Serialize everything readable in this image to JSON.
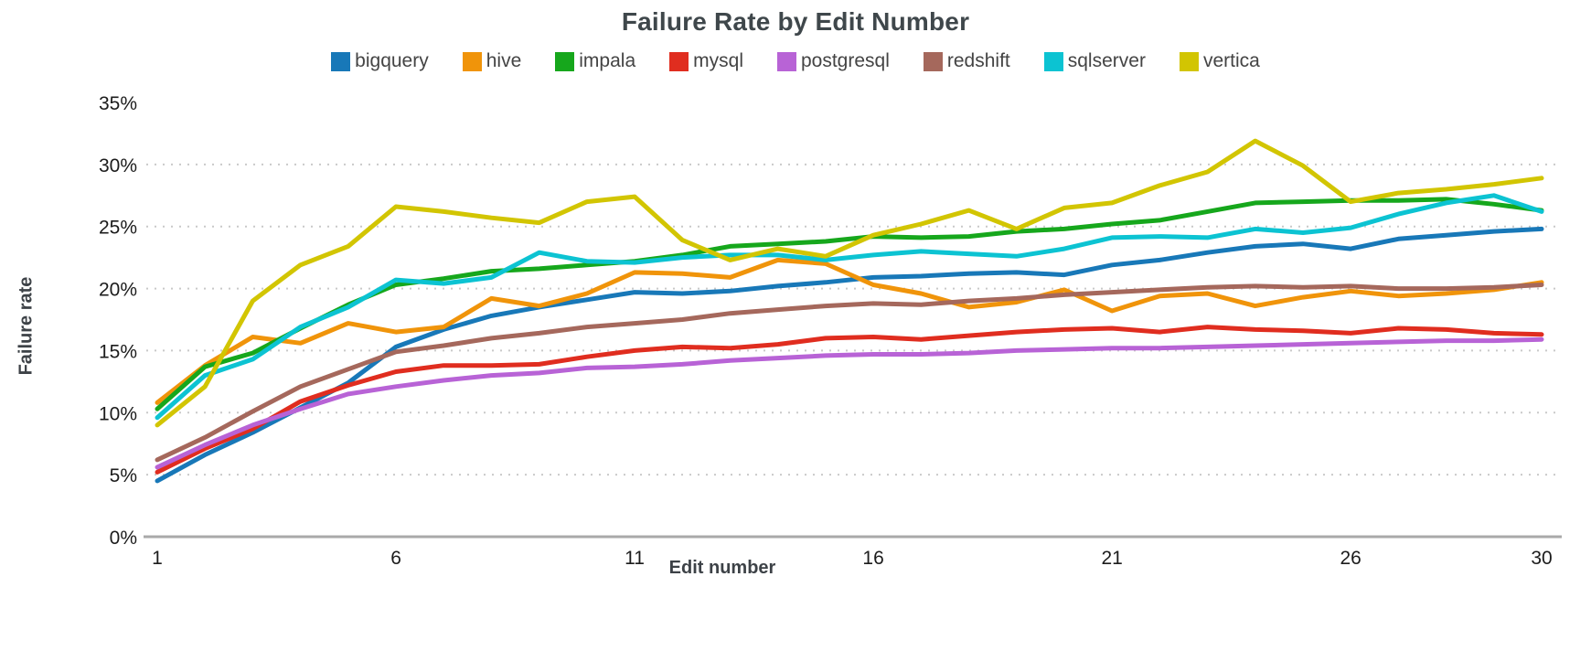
{
  "title": "Failure Rate by Edit Number",
  "axes": {
    "x_title": "Edit number",
    "y_title": "Failure rate"
  },
  "chart_data": {
    "type": "line",
    "title": "Failure Rate by Edit Number",
    "xlabel": "Edit number",
    "ylabel": "Failure rate",
    "xlim": [
      1,
      30
    ],
    "ylim": [
      0,
      35
    ],
    "xticks": [
      1,
      6,
      11,
      16,
      21,
      26,
      30
    ],
    "yticks_percent": [
      0,
      5,
      10,
      15,
      20,
      25,
      30,
      35
    ],
    "grid": "dotted horizontal lines at 5-30%, solid axis at 0%, no gridline at 35%",
    "legend_position": "top center",
    "x": [
      1,
      2,
      3,
      4,
      5,
      6,
      7,
      8,
      9,
      10,
      11,
      12,
      13,
      14,
      15,
      16,
      17,
      18,
      19,
      20,
      21,
      22,
      23,
      24,
      25,
      26,
      27,
      28,
      29,
      30
    ],
    "series": [
      {
        "name": "bigquery",
        "color": "#1878b8",
        "values": [
          4.5,
          6.6,
          8.4,
          10.4,
          12.4,
          15.3,
          16.7,
          17.8,
          18.5,
          19.1,
          19.7,
          19.6,
          19.8,
          20.2,
          20.5,
          20.9,
          21.0,
          21.2,
          21.3,
          21.1,
          21.9,
          22.3,
          22.9,
          23.4,
          23.6,
          23.2,
          24.0,
          24.3,
          24.6,
          24.8
        ]
      },
      {
        "name": "hive",
        "color": "#f0940a",
        "values": [
          10.8,
          13.8,
          16.1,
          15.6,
          17.2,
          16.5,
          16.9,
          19.2,
          18.6,
          19.6,
          21.3,
          21.2,
          20.9,
          22.3,
          22.0,
          20.3,
          19.6,
          18.5,
          18.9,
          19.9,
          18.2,
          19.4,
          19.6,
          18.6,
          19.3,
          19.8,
          19.4,
          19.6,
          19.9,
          20.5
        ]
      },
      {
        "name": "impala",
        "color": "#16a71c",
        "values": [
          10.3,
          13.7,
          14.8,
          16.8,
          18.7,
          20.3,
          20.8,
          21.4,
          21.6,
          21.9,
          22.2,
          22.7,
          23.4,
          23.6,
          23.8,
          24.2,
          24.1,
          24.2,
          24.6,
          24.8,
          25.2,
          25.5,
          26.2,
          26.9,
          27.0,
          27.1,
          27.1,
          27.2,
          26.8,
          26.3
        ]
      },
      {
        "name": "mysql",
        "color": "#e02d1f",
        "values": [
          5.2,
          7.1,
          8.7,
          10.9,
          12.2,
          13.3,
          13.8,
          13.8,
          13.9,
          14.5,
          15.0,
          15.3,
          15.2,
          15.5,
          16.0,
          16.1,
          15.9,
          16.2,
          16.5,
          16.7,
          16.8,
          16.5,
          16.9,
          16.7,
          16.6,
          16.4,
          16.8,
          16.7,
          16.4,
          16.3
        ]
      },
      {
        "name": "postgresql",
        "color": "#b863d6",
        "values": [
          5.6,
          7.4,
          9.0,
          10.3,
          11.5,
          12.1,
          12.6,
          13.0,
          13.2,
          13.6,
          13.7,
          13.9,
          14.2,
          14.4,
          14.6,
          14.7,
          14.7,
          14.8,
          15.0,
          15.1,
          15.2,
          15.2,
          15.3,
          15.4,
          15.5,
          15.6,
          15.7,
          15.8,
          15.8,
          15.9
        ]
      },
      {
        "name": "redshift",
        "color": "#a5685c",
        "values": [
          6.2,
          8.0,
          10.1,
          12.1,
          13.5,
          14.9,
          15.4,
          16.0,
          16.4,
          16.9,
          17.2,
          17.5,
          18.0,
          18.3,
          18.6,
          18.8,
          18.7,
          19.0,
          19.2,
          19.5,
          19.7,
          19.9,
          20.1,
          20.2,
          20.1,
          20.2,
          20.0,
          20.0,
          20.1,
          20.3
        ]
      },
      {
        "name": "sqlserver",
        "color": "#0cc3d2",
        "values": [
          9.6,
          13.0,
          14.3,
          16.9,
          18.5,
          20.7,
          20.4,
          20.9,
          22.9,
          22.2,
          22.1,
          22.5,
          22.7,
          22.7,
          22.3,
          22.7,
          23.0,
          22.8,
          22.6,
          23.2,
          24.1,
          24.2,
          24.1,
          24.8,
          24.5,
          24.9,
          26.0,
          26.9,
          27.5,
          26.2
        ]
      },
      {
        "name": "vertica",
        "color": "#d2c502",
        "values": [
          9.0,
          12.1,
          19.0,
          21.9,
          23.4,
          26.6,
          26.2,
          25.7,
          25.3,
          27.0,
          27.4,
          23.9,
          22.3,
          23.2,
          22.6,
          24.3,
          25.2,
          26.3,
          24.8,
          26.5,
          26.9,
          28.3,
          29.4,
          31.9,
          29.9,
          27.0,
          27.7,
          28.0,
          28.4,
          28.9
        ]
      }
    ],
    "style": {
      "grid_color": "#c9c9c9",
      "axis_color": "#a9a9a9",
      "tick_label_color": "#1c1c1c",
      "title_color": "#3f474b",
      "axis_title_color": "#3d4247",
      "legend_text_color": "#444444",
      "line_width": 5
    }
  }
}
